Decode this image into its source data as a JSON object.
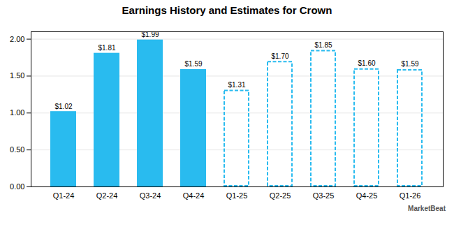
{
  "chart_data": {
    "type": "bar",
    "title": "Earnings History and Estimates for Crown",
    "categories": [
      "Q1-24",
      "Q2-24",
      "Q3-24",
      "Q4-24",
      "Q1-25",
      "Q2-25",
      "Q3-25",
      "Q4-25",
      "Q1-26"
    ],
    "values": [
      1.02,
      1.81,
      1.99,
      1.59,
      1.31,
      1.7,
      1.85,
      1.6,
      1.59
    ],
    "value_labels": [
      "$1.02",
      "$1.81",
      "$1.99",
      "$1.59",
      "$1.31",
      "$1.70",
      "$1.85",
      "$1.60",
      "$1.59"
    ],
    "data_labels": true,
    "line_style": [
      "solid",
      "solid",
      "solid",
      "solid",
      "dashed",
      "dashed",
      "dashed",
      "dashed",
      "dashed"
    ],
    "color": "#29BBEF",
    "ylim": [
      0,
      2.1
    ],
    "yticks": [
      {
        "value": 0,
        "label": "0.00"
      },
      {
        "value": 0.5,
        "label": "0.50"
      },
      {
        "value": 1,
        "label": "1.00"
      },
      {
        "value": 1.5,
        "label": "1.50"
      },
      {
        "value": 2,
        "label": "2.00"
      }
    ],
    "grid": true,
    "annotations": [
      "MarketBeat"
    ]
  }
}
